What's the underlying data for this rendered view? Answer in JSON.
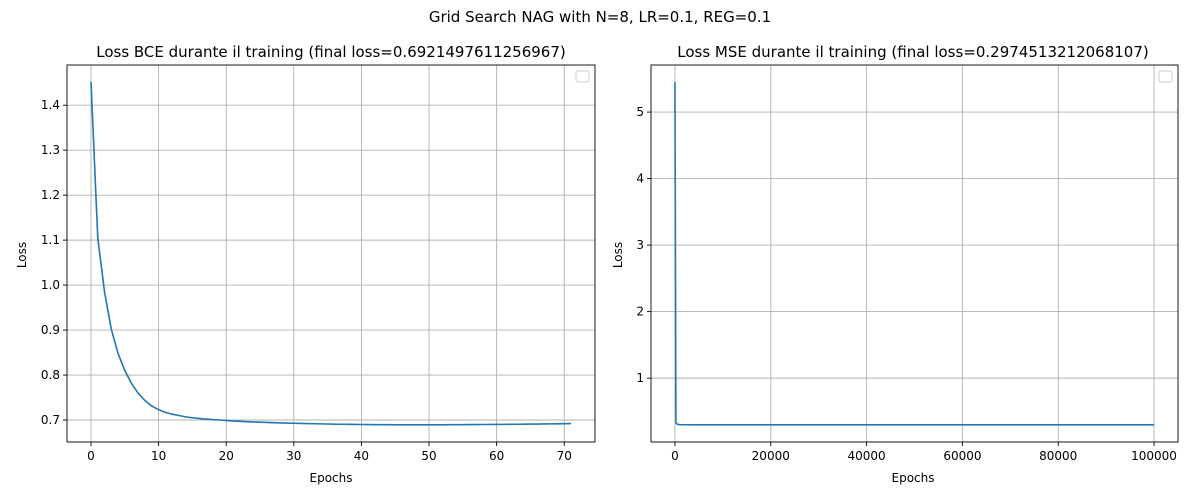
{
  "figure": {
    "suptitle": "Grid Search NAG with N=8, LR=0.1, REG=0.1",
    "line_color": "#1f77b4",
    "grid_color": "#b0b0b0"
  },
  "chart_data": [
    {
      "type": "line",
      "title": "Loss BCE durante il training (final loss=0.6921497611256967)",
      "xlabel": "Epochs",
      "ylabel": "Loss",
      "xlim": [
        -3.55,
        74.55
      ],
      "ylim": [
        0.6511,
        1.4894
      ],
      "xticks": [
        0,
        10,
        20,
        30,
        40,
        50,
        60,
        70
      ],
      "yticks": [
        0.7,
        0.8,
        0.9,
        1.0,
        1.1,
        1.2,
        1.3,
        1.4
      ],
      "ytick_labels": [
        "0.7",
        "0.8",
        "0.9",
        "1.0",
        "1.1",
        "1.2",
        "1.3",
        "1.4"
      ],
      "grid": true,
      "legend": "upper right (empty)",
      "series": [
        {
          "x": [
            0,
            1,
            2,
            3,
            4,
            5,
            6,
            7,
            8,
            9,
            10,
            11,
            12,
            13,
            14,
            15,
            16,
            17,
            18,
            19,
            20,
            21,
            22,
            23,
            24,
            25,
            26,
            27,
            28,
            29,
            30,
            31,
            32,
            33,
            34,
            35,
            36,
            37,
            38,
            39,
            40,
            41,
            42,
            43,
            44,
            45,
            46,
            47,
            48,
            49,
            50,
            51,
            52,
            53,
            54,
            55,
            56,
            57,
            58,
            59,
            60,
            61,
            62,
            63,
            64,
            65,
            66,
            67,
            68,
            69,
            70,
            71
          ],
          "y": [
            1.452,
            1.105,
            0.985,
            0.902,
            0.848,
            0.81,
            0.781,
            0.759,
            0.743,
            0.731,
            0.723,
            0.717,
            0.713,
            0.71,
            0.707,
            0.705,
            0.7035,
            0.702,
            0.701,
            0.7,
            0.699,
            0.698,
            0.697,
            0.6963,
            0.6957,
            0.6951,
            0.6946,
            0.6941,
            0.6936,
            0.6932,
            0.6928,
            0.6924,
            0.692,
            0.6917,
            0.6914,
            0.6911,
            0.6908,
            0.6906,
            0.6904,
            0.6902,
            0.69,
            0.6898,
            0.6897,
            0.6896,
            0.6895,
            0.6894,
            0.6893,
            0.6893,
            0.6893,
            0.6893,
            0.6893,
            0.6894,
            0.6894,
            0.6895,
            0.6896,
            0.6897,
            0.6898,
            0.6899,
            0.69,
            0.6901,
            0.6902,
            0.6903,
            0.6905,
            0.6906,
            0.6907,
            0.6909,
            0.691,
            0.6912,
            0.6914,
            0.6916,
            0.6918,
            0.6921
          ]
        }
      ]
    },
    {
      "type": "line",
      "title": "Loss MSE durante il training (final loss=0.2974513212068107)",
      "xlabel": "Epochs",
      "ylabel": "Loss",
      "xlim": [
        -5000,
        105000
      ],
      "ylim": [
        0.0396,
        5.7078
      ],
      "xticks": [
        0,
        20000,
        40000,
        60000,
        80000,
        100000
      ],
      "yticks": [
        1,
        2,
        3,
        4,
        5
      ],
      "ytick_labels": [
        "1",
        "2",
        "3",
        "4",
        "5"
      ],
      "grid": true,
      "legend": "upper right (empty)",
      "series": [
        {
          "x": [
            0,
            200,
            500,
            1000,
            5000,
            20000,
            40000,
            60000,
            80000,
            100000
          ],
          "y": [
            5.45,
            0.33,
            0.305,
            0.3,
            0.2985,
            0.2978,
            0.2976,
            0.2975,
            0.2975,
            0.2975
          ]
        }
      ]
    }
  ]
}
